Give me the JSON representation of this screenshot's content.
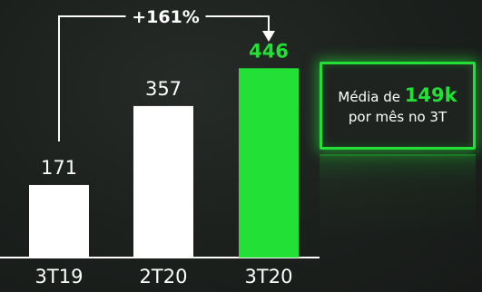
{
  "chart_data": {
    "type": "bar",
    "categories": [
      "3T19",
      "2T20",
      "3T20"
    ],
    "values": [
      171,
      357,
      446
    ],
    "value_labels": [
      "171",
      "357",
      "446"
    ],
    "highlight_index": 2,
    "growth_annotation": {
      "text": "+161%",
      "from_index": 0,
      "to_index": 2
    },
    "title": "",
    "xlabel": "",
    "ylabel": "",
    "ylim": [
      0,
      500
    ],
    "grid": false,
    "legend": "none",
    "colors": {
      "default": "#ffffff",
      "highlight": "#22e036"
    }
  },
  "callout": {
    "prefix": "Média de",
    "highlight": "149k",
    "line2": "por mês no 3T"
  }
}
